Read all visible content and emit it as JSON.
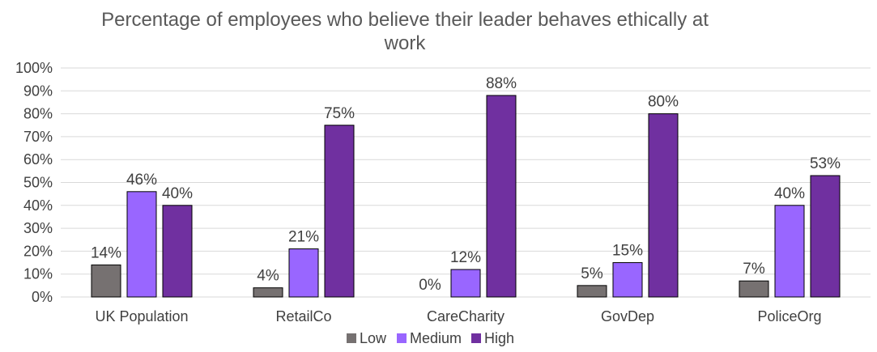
{
  "chart_data": {
    "type": "bar",
    "title_line1": "Percentage of employees who believe their leader behaves ethically at",
    "title_line2": "work",
    "categories": [
      "UK Population",
      "RetailCo",
      "CareCharity",
      "GovDep",
      "PoliceOrg"
    ],
    "series": [
      {
        "name": "Low",
        "color": "#767171",
        "values": [
          14,
          4,
          0,
          5,
          7
        ],
        "labels": [
          "14%",
          "4%",
          "0%",
          "5%",
          "7%"
        ]
      },
      {
        "name": "Medium",
        "color": "#9966ff",
        "values": [
          46,
          21,
          12,
          15,
          40
        ],
        "labels": [
          "46%",
          "21%",
          "12%",
          "15%",
          "40%"
        ]
      },
      {
        "name": "High",
        "color": "#7030a0",
        "values": [
          40,
          75,
          88,
          80,
          53
        ],
        "labels": [
          "40%",
          "75%",
          "88%",
          "80%",
          "53%"
        ]
      }
    ],
    "y_ticks": [
      "0%",
      "10%",
      "20%",
      "30%",
      "40%",
      "50%",
      "60%",
      "70%",
      "80%",
      "90%",
      "100%"
    ],
    "ylim": [
      0,
      100
    ],
    "grid": true,
    "legend_position": "bottom"
  }
}
